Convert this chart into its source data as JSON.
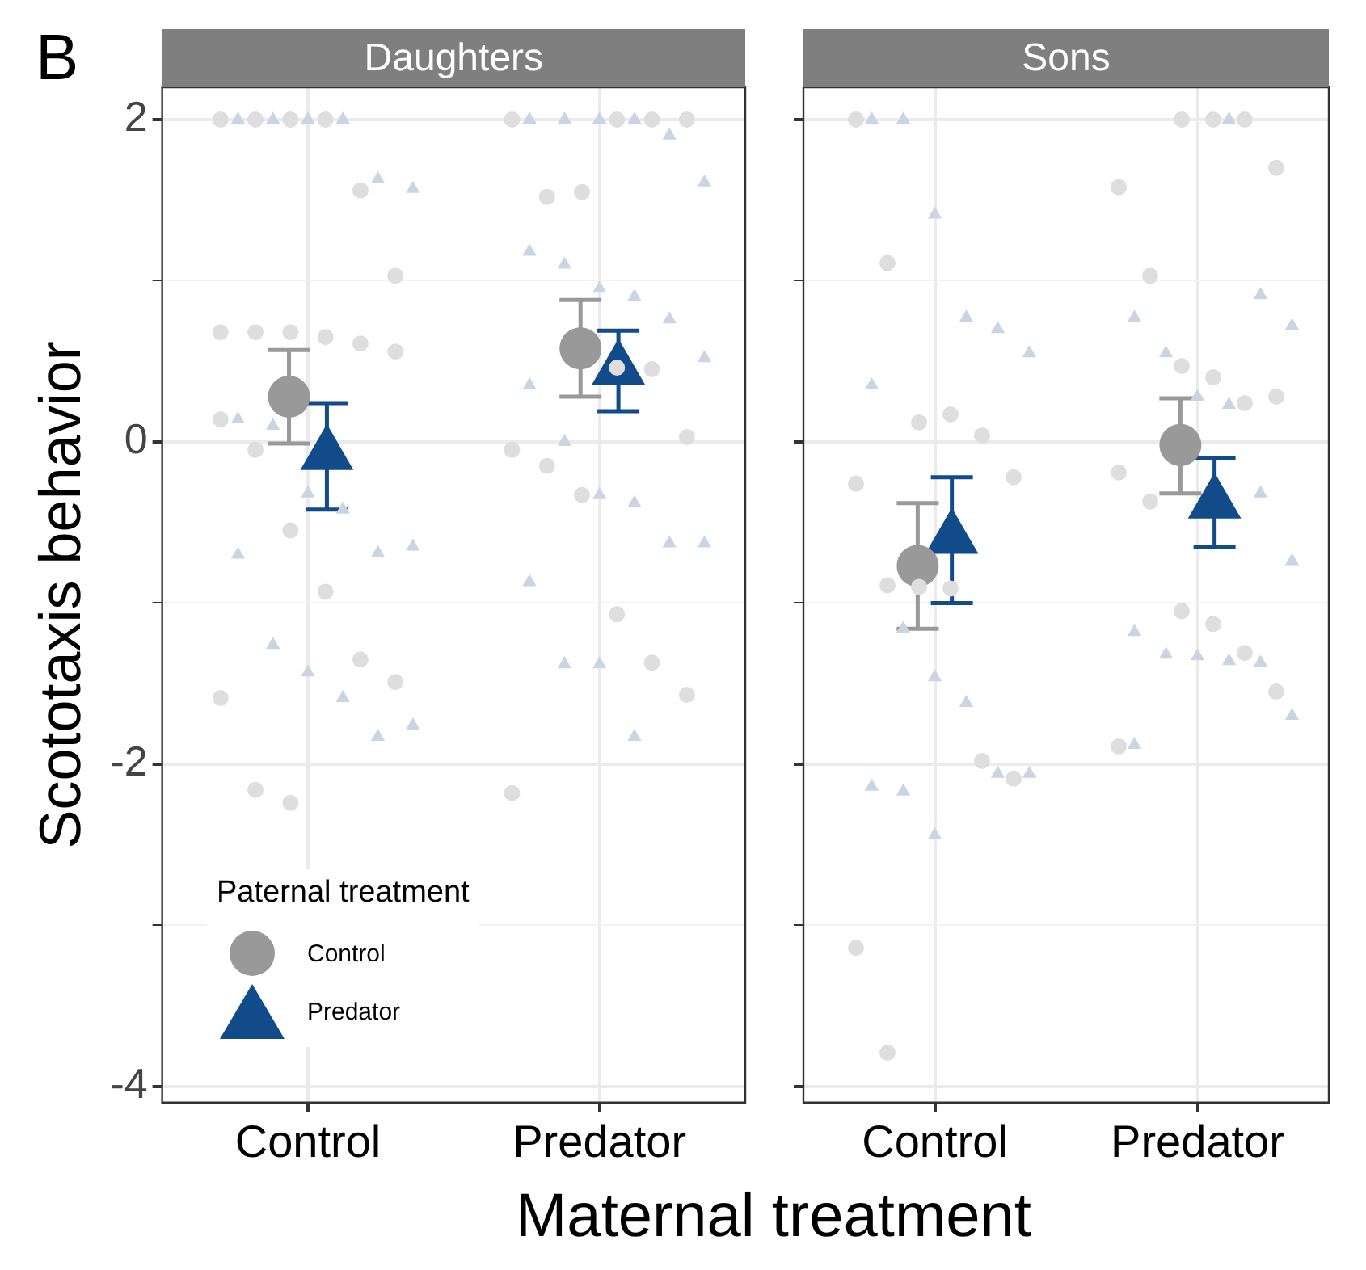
{
  "chart_data": [
    {
      "type": "scatter",
      "title": "Daughters",
      "ylabel": "Scototaxis behavior",
      "xlabel": "Maternal treatment",
      "legend_title": "Paternal treatment",
      "legend": "bottom left",
      "annotations": [
        "B"
      ],
      "grid": true,
      "categories": [
        "Control",
        "Predator"
      ],
      "ylim": [
        -4.1,
        2.2
      ],
      "yticks": [
        -4,
        {
          "value": -3,
          "label": null
        },
        -2,
        {
          "value": -1,
          "label": null
        },
        0,
        {
          "value": 1,
          "label": null
        },
        2
      ],
      "series": [
        {
          "marker": "circle",
          "color": "#dedede",
          "x": [
            "Control",
            "Control",
            "Control",
            "Control",
            "Control",
            "Control",
            "Control",
            "Control",
            "Control",
            "Control",
            "Control",
            "Control",
            "Control",
            "Control",
            "Control",
            "Control",
            "Control",
            "Control",
            "Control",
            "Control",
            "Control",
            "Predator",
            "Predator",
            "Predator",
            "Predator",
            "Predator",
            "Predator",
            "Predator",
            "Predator",
            "Predator",
            "Predator",
            "Predator",
            "Predator",
            "Predator",
            "Predator",
            "Predator",
            "Predator"
          ],
          "values": [
            2,
            2,
            2,
            2,
            1.56,
            1.03,
            0.68,
            0.68,
            0.68,
            0.65,
            0.61,
            0.56,
            0.14,
            -0.05,
            -0.55,
            -0.93,
            -1.35,
            -1.49,
            -1.59,
            -2.16,
            -2.24,
            2,
            2,
            2,
            2,
            1.52,
            1.55,
            0.46,
            0.45,
            0.03,
            -0.05,
            -0.15,
            -0.33,
            -1.07,
            -1.37,
            -1.57,
            -2.18
          ]
        },
        {
          "marker": "triangle",
          "color": "#c9d5e3",
          "x": [
            "Control",
            "Control",
            "Control",
            "Control",
            "Control",
            "Control",
            "Control",
            "Control",
            "Control",
            "Control",
            "Control",
            "Control",
            "Control",
            "Control",
            "Control",
            "Control",
            "Control",
            "Control",
            "Predator",
            "Predator",
            "Predator",
            "Predator",
            "Predator",
            "Predator",
            "Predator",
            "Predator",
            "Predator",
            "Predator",
            "Predator",
            "Predator",
            "Predator",
            "Predator",
            "Predator",
            "Predator",
            "Predator",
            "Predator",
            "Predator",
            "Predator",
            "Predator",
            "Predator"
          ],
          "values": [
            2,
            2,
            2,
            2,
            1.63,
            1.57,
            0.14,
            0.1,
            -0.32,
            -0.42,
            -0.69,
            -0.65,
            -0.7,
            -1.26,
            -1.43,
            -1.59,
            -1.83,
            -1.76,
            2,
            2,
            2,
            2,
            1.9,
            1.61,
            1.18,
            1.1,
            0.95,
            0.9,
            0.76,
            0.52,
            0.35,
            0.0,
            -0.33,
            -0.38,
            -0.63,
            -0.63,
            -0.87,
            -1.38,
            -1.38,
            -1.83
          ]
        },
        {
          "name": "Control",
          "marker": "circle",
          "color": "#999999",
          "x": [
            "Control",
            "Predator"
          ],
          "values": [
            0.28,
            0.58
          ],
          "errors": [
            [
              -0.01,
              0.57
            ],
            [
              0.28,
              0.88
            ]
          ]
        },
        {
          "name": "Predator",
          "marker": "triangle",
          "color": "#114b8a",
          "x": [
            "Control",
            "Predator"
          ],
          "values": [
            -0.08,
            0.45
          ],
          "errors": [
            [
              -0.42,
              0.24
            ],
            [
              0.19,
              0.69
            ]
          ]
        }
      ]
    },
    {
      "type": "scatter",
      "title": "Sons",
      "grid": true,
      "tick_labels": "x",
      "categories": [
        "Control",
        "Predator"
      ],
      "ylim": [
        -4.1,
        2.2
      ],
      "yticks": [
        -4,
        {
          "value": -3,
          "label": null
        },
        -2,
        {
          "value": -1,
          "label": null
        },
        0,
        {
          "value": 1,
          "label": null
        },
        2
      ],
      "series": [
        {
          "marker": "circle",
          "color": "#dedede",
          "x": [
            "Control",
            "Control",
            "Control",
            "Control",
            "Control",
            "Control",
            "Control",
            "Control",
            "Control",
            "Control",
            "Control",
            "Control",
            "Control",
            "Control",
            "Predator",
            "Predator",
            "Predator",
            "Predator",
            "Predator",
            "Predator",
            "Predator",
            "Predator",
            "Predator",
            "Predator",
            "Predator",
            "Predator",
            "Predator",
            "Predator",
            "Predator",
            "Predator",
            "Predator"
          ],
          "values": [
            2,
            1.11,
            0.12,
            0.17,
            0.04,
            -0.22,
            -0.26,
            -0.89,
            -0.9,
            -0.91,
            -1.98,
            -2.09,
            -3.14,
            -3.79,
            2,
            2,
            2,
            1.7,
            1.58,
            1.03,
            0.47,
            0.4,
            0.24,
            0.28,
            -0.19,
            -0.37,
            -1.05,
            -1.13,
            -1.31,
            -1.55,
            -1.89
          ]
        },
        {
          "marker": "triangle",
          "color": "#c9d5e3",
          "x": [
            "Control",
            "Control",
            "Control",
            "Control",
            "Control",
            "Control",
            "Control",
            "Control",
            "Control",
            "Control",
            "Control",
            "Control",
            "Control",
            "Control",
            "Control",
            "Predator",
            "Predator",
            "Predator",
            "Predator",
            "Predator",
            "Predator",
            "Predator",
            "Predator",
            "Predator",
            "Predator",
            "Predator",
            "Predator",
            "Predator",
            "Predator",
            "Predator",
            "Predator"
          ],
          "values": [
            2,
            2,
            1.41,
            0.77,
            0.7,
            0.55,
            0.35,
            -1.16,
            -1.46,
            -1.62,
            -2.06,
            -2.06,
            -2.14,
            -2.17,
            -2.44,
            2,
            0.91,
            0.72,
            0.77,
            0.55,
            0.28,
            0.23,
            -0.32,
            -0.74,
            -1.18,
            -1.32,
            -1.33,
            -1.36,
            -1.37,
            -1.7,
            -1.88
          ]
        },
        {
          "marker": "circle",
          "color": "#999999",
          "x": [
            "Control",
            "Predator"
          ],
          "values": [
            -0.77,
            -0.02
          ],
          "errors": [
            [
              -1.16,
              -0.38
            ],
            [
              -0.32,
              0.27
            ]
          ]
        },
        {
          "marker": "triangle",
          "color": "#114b8a",
          "x": [
            "Control",
            "Predator"
          ],
          "values": [
            -0.6,
            -0.38
          ],
          "errors": [
            [
              -1.0,
              -0.22
            ],
            [
              -0.65,
              -0.1
            ]
          ]
        }
      ]
    }
  ]
}
